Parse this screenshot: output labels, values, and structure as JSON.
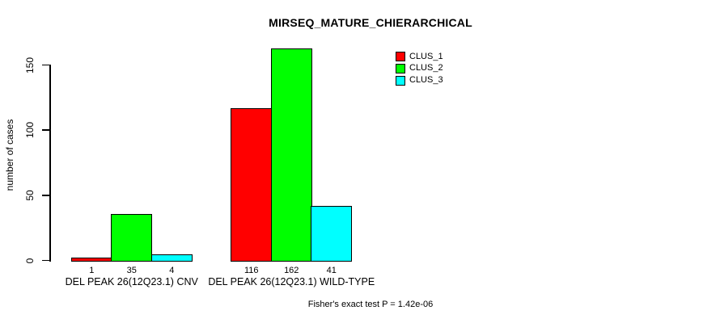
{
  "page": {
    "background_color": "#ffffff",
    "text_color": "#000000"
  },
  "chart_data": {
    "type": "bar",
    "title": "MIRSEQ_MATURE_CHIERARCHICAL",
    "ylabel": "number of cases",
    "xlabel": "",
    "categories": [
      "DEL PEAK 26(12Q23.1) CNV",
      "DEL PEAK 26(12Q23.1) WILD-TYPE"
    ],
    "series": [
      {
        "name": "CLUS_1",
        "color": "#ff0000",
        "values": [
          1,
          116
        ]
      },
      {
        "name": "CLUS_2",
        "color": "#00ff00",
        "values": [
          35,
          162
        ]
      },
      {
        "name": "CLUS_3",
        "color": "#00ffff",
        "values": [
          4,
          41
        ]
      }
    ],
    "yticks": [
      0,
      50,
      100,
      150
    ],
    "ylim": [
      0,
      162
    ],
    "grid": false,
    "bar_value_labels_shown": true,
    "legend": {
      "position": "top-right",
      "entries": [
        "CLUS_1",
        "CLUS_2",
        "CLUS_3"
      ]
    },
    "annotation": "Fisher's exact test P = 1.42e-06",
    "axis_color": "#000000",
    "bar_border_color": "#000000"
  }
}
